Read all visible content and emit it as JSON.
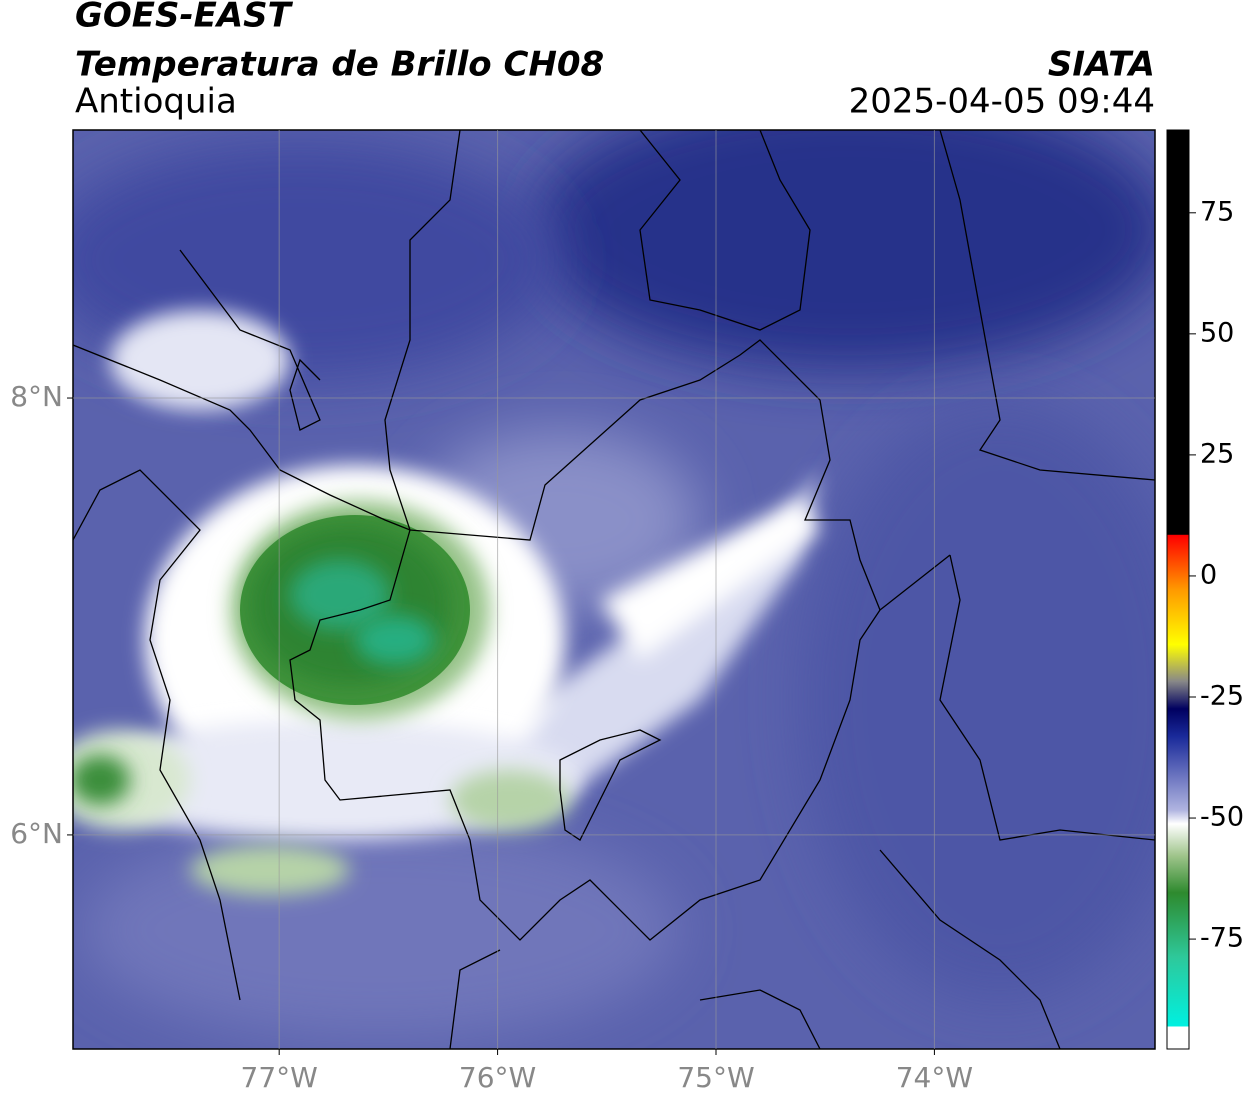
{
  "header": {
    "title": "GOES-EAST",
    "subtitle": "Temperatura de Brillo CH08",
    "region": "Antioquia",
    "source": "SIATA",
    "timestamp": "2025-04-05 09:44"
  },
  "map": {
    "lon_range": [
      -77.944,
      -72.99
    ],
    "lat_range": [
      5.02,
      9.227
    ],
    "lon_ticks": [
      {
        "value": -77,
        "label": "77°W"
      },
      {
        "value": -76,
        "label": "76°W"
      },
      {
        "value": -75,
        "label": "75°W"
      },
      {
        "value": -74,
        "label": "74°W"
      }
    ],
    "lat_ticks": [
      {
        "value": 8,
        "label": "8°N"
      },
      {
        "value": 6,
        "label": "6°N"
      }
    ],
    "grid": true
  },
  "colorbar": {
    "range": [
      -97.7,
      92.1
    ],
    "ticks": [
      75,
      50,
      25,
      0,
      -25,
      -50,
      -75
    ]
  }
}
